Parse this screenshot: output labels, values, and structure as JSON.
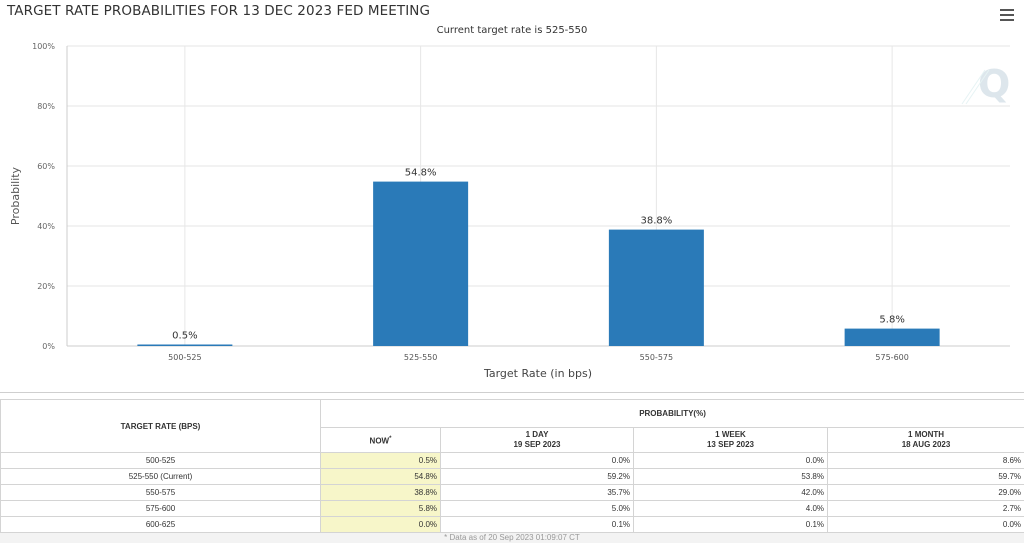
{
  "chart_data": {
    "type": "bar",
    "title": "TARGET RATE PROBABILITIES FOR 13 DEC 2023 FED MEETING",
    "subtitle": "Current target rate is 525-550",
    "categories": [
      "500-525",
      "525-550",
      "550-575",
      "575-600"
    ],
    "values": [
      0.5,
      54.8,
      38.8,
      5.8
    ],
    "data_labels": [
      "0.5%",
      "54.8%",
      "38.8%",
      "5.8%"
    ],
    "xlabel": "Target Rate (in bps)",
    "ylabel": "Probability",
    "ylim": [
      0,
      100
    ],
    "yticks": [
      "0%",
      "20%",
      "40%",
      "60%",
      "80%",
      "100%"
    ],
    "grid": true,
    "bar_color": "#2a7ab8"
  },
  "table": {
    "rate_header": "TARGET RATE (BPS)",
    "prob_header": "PROBABILITY(%)",
    "columns": [
      {
        "line1": "NOW",
        "line2": "",
        "marker": "*"
      },
      {
        "line1": "1 DAY",
        "line2": "19 SEP 2023",
        "marker": ""
      },
      {
        "line1": "1 WEEK",
        "line2": "13 SEP 2023",
        "marker": ""
      },
      {
        "line1": "1 MONTH",
        "line2": "18 AUG 2023",
        "marker": ""
      }
    ],
    "rows": [
      {
        "rate": "500-525",
        "values": [
          "0.5%",
          "0.0%",
          "0.0%",
          "8.6%"
        ]
      },
      {
        "rate": "525-550 (Current)",
        "values": [
          "54.8%",
          "59.2%",
          "53.8%",
          "59.7%"
        ]
      },
      {
        "rate": "550-575",
        "values": [
          "38.8%",
          "35.7%",
          "42.0%",
          "29.0%"
        ]
      },
      {
        "rate": "575-600",
        "values": [
          "5.8%",
          "5.0%",
          "4.0%",
          "2.7%"
        ]
      },
      {
        "rate": "600-625",
        "values": [
          "0.0%",
          "0.1%",
          "0.1%",
          "0.0%"
        ]
      }
    ],
    "footnote": "* Data as of 20 Sep 2023 01:09:07 CT"
  },
  "icons": {
    "menu": "hamburger-menu-icon",
    "watermark": "quikstrike-logo-watermark"
  }
}
